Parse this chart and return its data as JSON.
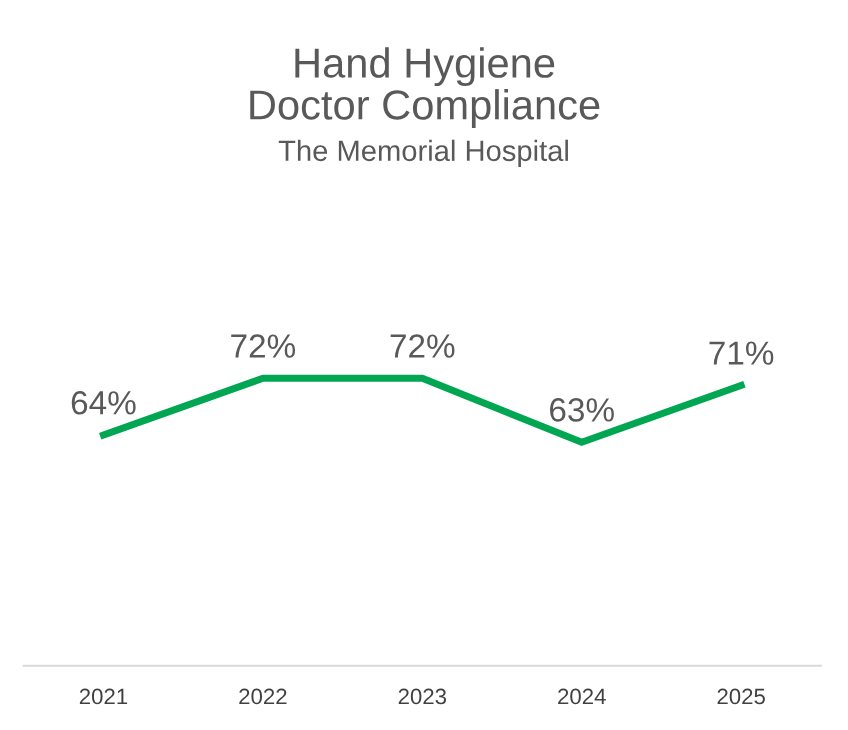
{
  "chart_data": {
    "type": "line",
    "title": "Hand Hygiene\nDoctor Compliance",
    "subtitle": "The Memorial Hospital",
    "categories": [
      "2021",
      "2022",
      "2023",
      "2024",
      "2025"
    ],
    "series": [
      {
        "color": "#00a651",
        "values": [
          64,
          72,
          72,
          63,
          71
        ],
        "value_labels": [
          "64%",
          "72%",
          "72%",
          "63%",
          "71%"
        ]
      }
    ],
    "tick_labels": "x",
    "line_style": "solid"
  }
}
